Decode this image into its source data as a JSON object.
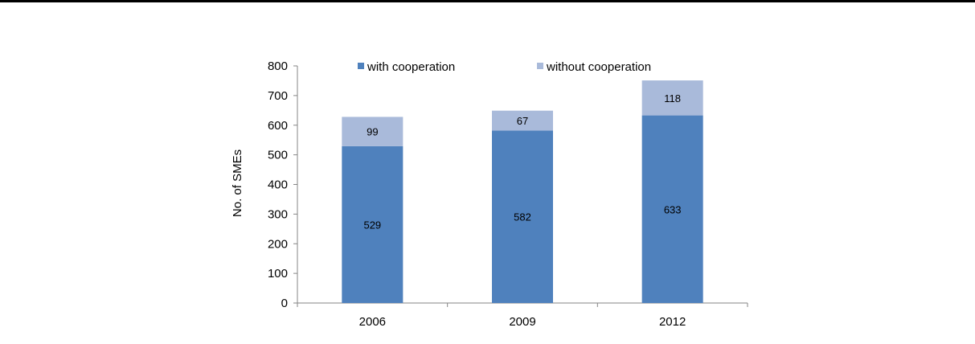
{
  "chart_data": {
    "type": "bar",
    "stacked": true,
    "categories": [
      "2006",
      "2009",
      "2012"
    ],
    "series": [
      {
        "name": "with cooperation",
        "values": [
          529,
          582,
          633
        ],
        "color": "#4F81BD"
      },
      {
        "name": "without cooperation",
        "values": [
          99,
          67,
          118
        ],
        "color": "#A9BADA"
      }
    ],
    "title": "",
    "xlabel": "",
    "ylabel": "No. of SMEs",
    "ylim": [
      0,
      800
    ],
    "yticks": [
      "0",
      "100",
      "200",
      "300",
      "400",
      "500",
      "600",
      "700",
      "800"
    ],
    "grid": false,
    "legend_position": "top"
  }
}
